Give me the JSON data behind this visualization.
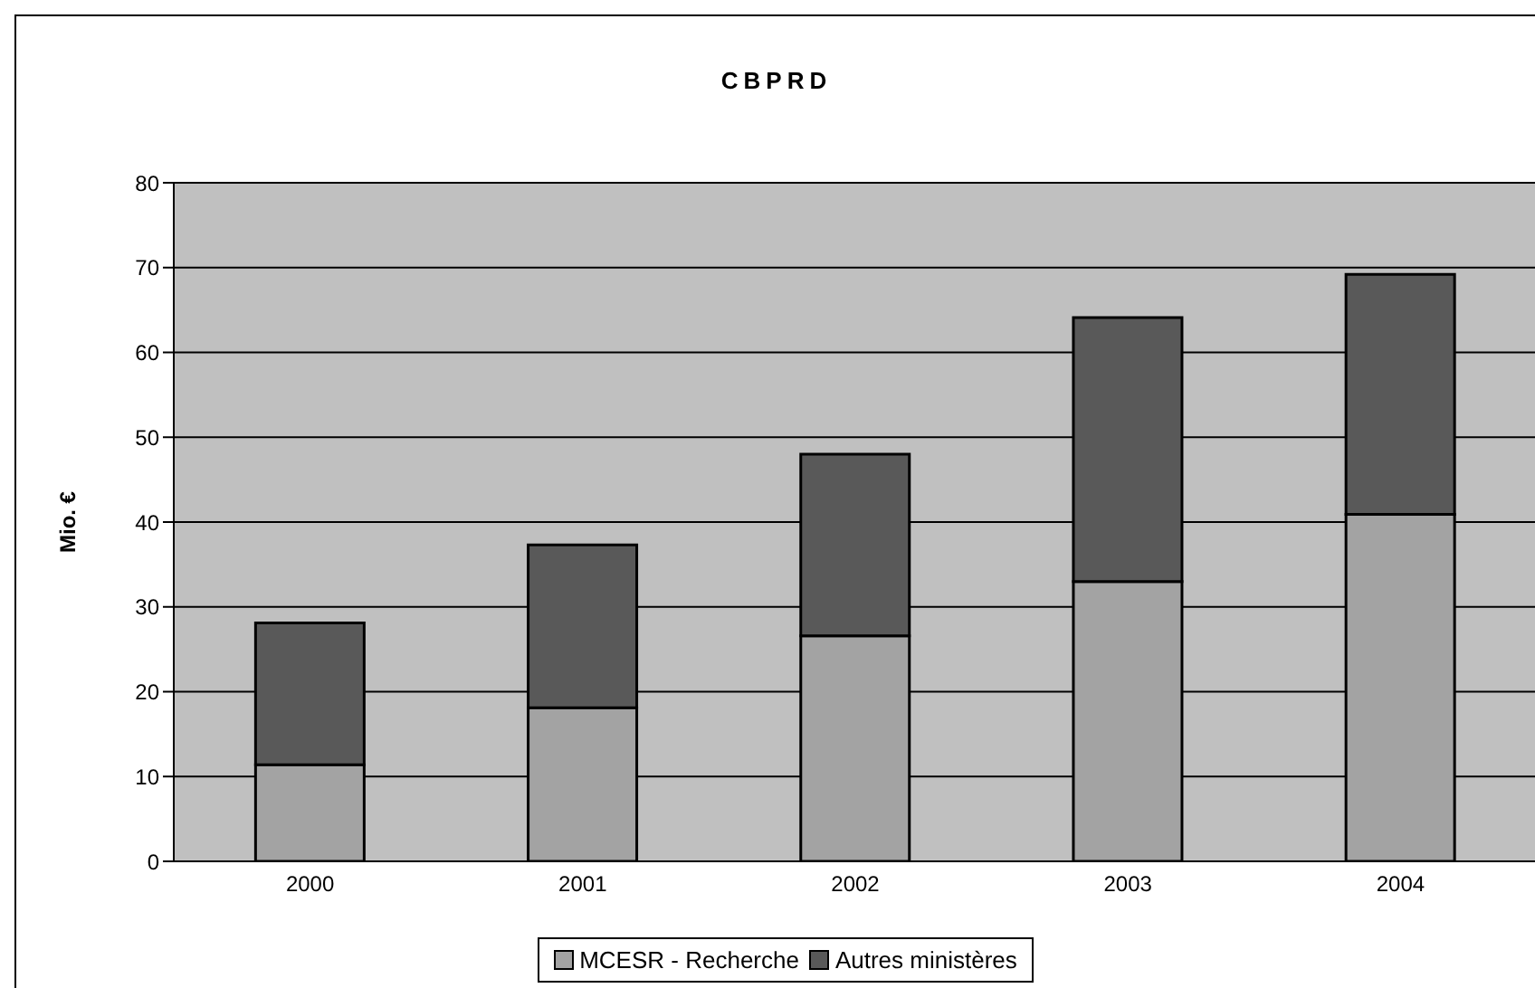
{
  "chart_data": {
    "type": "bar",
    "title": "CBPRD",
    "ylabel": "Mio. €",
    "categories": [
      "2000",
      "2001",
      "2002",
      "2003",
      "2004"
    ],
    "stacked": true,
    "series": [
      {
        "name": "MCESR - Recherche",
        "color": "#a3a3a3",
        "values": [
          11.4,
          18.1,
          26.6,
          33.0,
          40.9
        ]
      },
      {
        "name": "Autres ministères",
        "color": "#595959",
        "values": [
          16.7,
          19.2,
          21.4,
          31.1,
          28.3
        ]
      }
    ],
    "ylim": [
      0,
      80
    ],
    "yticks": [
      0,
      10,
      20,
      30,
      40,
      50,
      60,
      70,
      80
    ],
    "grid": "y",
    "legend": "bottom"
  }
}
